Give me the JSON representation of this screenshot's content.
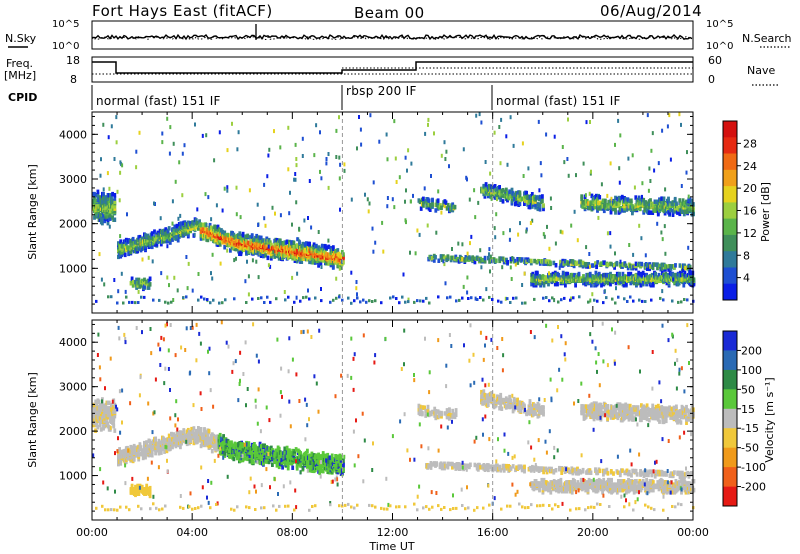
{
  "header": {
    "radar": "Fort Hays East (fitACF)",
    "beam": "Beam 00",
    "date": "06/Aug/2014"
  },
  "noise_panel": {
    "left_label": "N.Sky",
    "right_label": "N.Search",
    "left_ticks": [
      "10^5",
      "10^0"
    ],
    "right_ticks": [
      "10^5",
      "10^0"
    ]
  },
  "freq_panel": {
    "left_label_1": "Freq.",
    "left_label_2": "[MHz]",
    "right_label": "Nave",
    "left_ticks": [
      "18",
      "8"
    ],
    "right_ticks": [
      "60",
      "0"
    ]
  },
  "cpid": {
    "label": "CPID",
    "modes": [
      {
        "text": "normal (fast) 151 IF",
        "start_hour": 0,
        "end_hour": 10
      },
      {
        "text": "rbsp 200 IF",
        "start_hour": 10,
        "end_hour": 16
      },
      {
        "text": "normal (fast) 151 IF",
        "start_hour": 16,
        "end_hour": 24
      }
    ]
  },
  "chart_data": [
    {
      "type": "heatmap",
      "title": "Power",
      "ylabel": "Slant Range [km]",
      "y_ticks": [
        "1000",
        "2000",
        "3000",
        "4000"
      ],
      "ylim": [
        0,
        4500
      ],
      "xlim_hours": [
        0,
        24
      ],
      "colorbar": {
        "label": "Power [dB]",
        "ticks": [
          "4",
          "8",
          "12",
          "16",
          "20",
          "24",
          "28"
        ],
        "colors": [
          "#0a1ee6",
          "#1e4fd2",
          "#2f7a9a",
          "#3f8f5a",
          "#5ab44a",
          "#9ccf3f",
          "#e6d21e",
          "#f0a01a",
          "#f06a14",
          "#e62a12",
          "#d4100f"
        ]
      }
    },
    {
      "type": "heatmap",
      "title": "Velocity",
      "ylabel": "Slant Range [km]",
      "y_ticks": [
        "1000",
        "2000",
        "3000",
        "4000"
      ],
      "ylim": [
        0,
        4500
      ],
      "xlim_hours": [
        0,
        24
      ],
      "colorbar": {
        "label": "Velocity [m s⁻¹]",
        "ticks": [
          "200",
          "100",
          "50",
          "15",
          "-15",
          "-50",
          "-100",
          "-200"
        ],
        "colors": [
          "#1a2ad6",
          "#2a6ab4",
          "#2e8a46",
          "#5ac83a",
          "#bcbcbc",
          "#f0c83a",
          "#f09a1a",
          "#f0601a",
          "#e61a14"
        ]
      }
    }
  ],
  "x_axis": {
    "ticks": [
      "00:00",
      "04:00",
      "08:00",
      "12:00",
      "16:00",
      "20:00",
      "00:00"
    ],
    "label": "Time UT"
  }
}
